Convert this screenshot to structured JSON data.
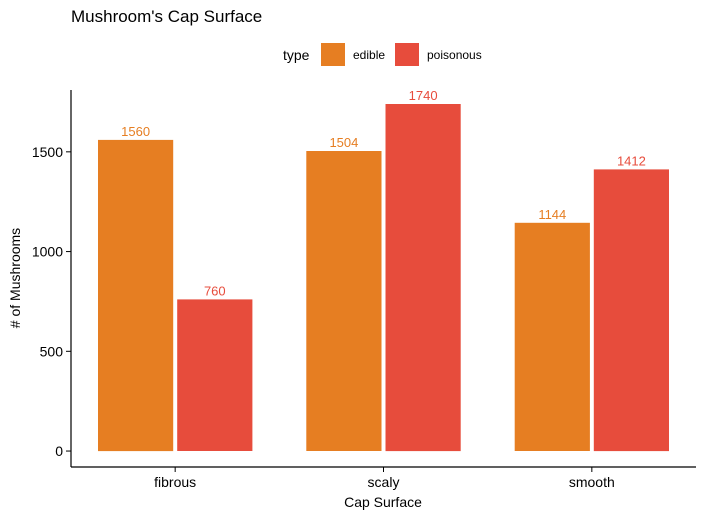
{
  "chart_data": {
    "type": "bar",
    "title": "Mushroom's Cap Surface",
    "xlabel": "Cap Surface",
    "ylabel": "# of Mushrooms",
    "categories": [
      "fibrous",
      "scaly",
      "smooth"
    ],
    "series": [
      {
        "name": "edible",
        "values": [
          1560,
          1504,
          1144
        ],
        "color": "#E67E22"
      },
      {
        "name": "poisonous",
        "values": [
          760,
          1740,
          1412
        ],
        "color": "#E74C3C"
      }
    ],
    "ylim": [
      -80,
      1810
    ],
    "yticks": [
      0,
      500,
      1000,
      1500
    ],
    "legend": {
      "title": "type",
      "position": "top"
    },
    "grid": false
  }
}
